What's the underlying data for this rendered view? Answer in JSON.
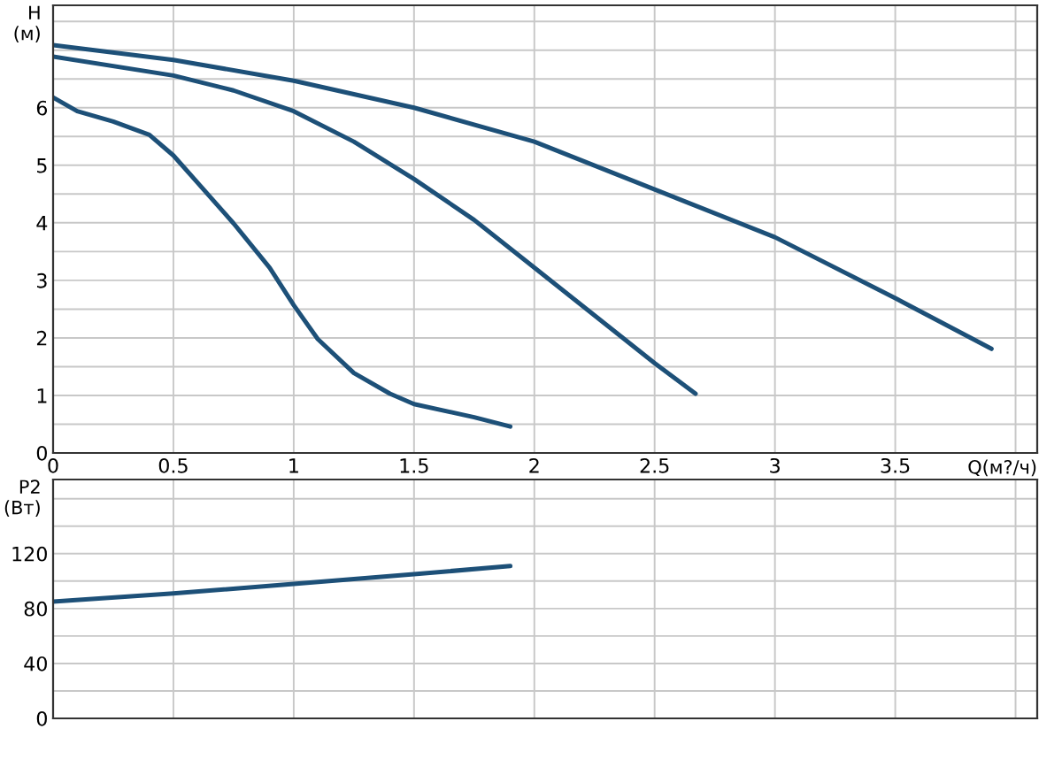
{
  "chart_data": [
    {
      "type": "line",
      "xlabel": "Q(м?/ч)",
      "ylabel": "H\n(м)",
      "xlim": [
        0,
        4.09
      ],
      "ylim": [
        0,
        7.78
      ],
      "xticks": [
        0,
        0.5,
        1,
        1.5,
        2,
        2.5,
        3,
        3.5,
        {
          "value": 4,
          "label": null
        }
      ],
      "yticks": [
        0,
        {
          "value": 0.5,
          "label": null
        },
        1,
        {
          "value": 1.5,
          "label": null
        },
        2,
        {
          "value": 2.5,
          "label": null
        },
        3,
        {
          "value": 3.5,
          "label": null
        },
        4,
        {
          "value": 4.5,
          "label": null
        },
        5,
        {
          "value": 5.5,
          "label": null
        },
        6,
        {
          "value": 6.5,
          "label": null
        },
        {
          "value": 7,
          "label": null
        },
        {
          "value": 7.5,
          "label": null
        }
      ],
      "grid": true,
      "tick_labels": "xy",
      "series": [
        {
          "color": "#1d5078",
          "x": [
            0,
            0.5,
            1,
            1.5,
            2,
            2.5,
            3,
            3.5,
            3.9
          ],
          "values": [
            7.09,
            6.83,
            6.47,
            6.0,
            5.41,
            4.58,
            3.75,
            2.69,
            1.81
          ]
        },
        {
          "color": "#1d5078",
          "x": [
            0,
            0.5,
            0.75,
            1,
            1.25,
            1.5,
            1.75,
            2,
            2.25,
            2.5,
            2.67
          ],
          "values": [
            6.89,
            6.56,
            6.3,
            5.94,
            5.41,
            4.76,
            4.05,
            3.22,
            2.39,
            1.56,
            1.03
          ]
        },
        {
          "color": "#1d5078",
          "x": [
            0,
            0.1,
            0.25,
            0.4,
            0.5,
            0.6,
            0.75,
            0.9,
            1,
            1.1,
            1.25,
            1.4,
            1.5,
            1.75,
            1.9
          ],
          "values": [
            6.18,
            5.94,
            5.76,
            5.53,
            5.17,
            4.7,
            3.99,
            3.22,
            2.57,
            1.98,
            1.39,
            1.03,
            0.85,
            0.62,
            0.46
          ]
        }
      ]
    },
    {
      "type": "line",
      "ylabel": "P2\n(Вт)",
      "xlim": [
        0,
        4.09
      ],
      "ylim": [
        0,
        174
      ],
      "xticks": [
        {
          "value": 0,
          "label": null
        },
        {
          "value": 0.5,
          "label": null
        },
        {
          "value": 1,
          "label": null
        },
        {
          "value": 1.5,
          "label": null
        },
        {
          "value": 2,
          "label": null
        },
        {
          "value": 2.5,
          "label": null
        },
        {
          "value": 3,
          "label": null
        },
        {
          "value": 3.5,
          "label": null
        },
        {
          "value": 4,
          "label": null
        }
      ],
      "yticks": [
        0,
        {
          "value": 20,
          "label": null
        },
        40,
        {
          "value": 60,
          "label": null
        },
        80,
        {
          "value": 100,
          "label": null
        },
        120,
        {
          "value": 140,
          "label": null
        },
        {
          "value": 160,
          "label": null
        }
      ],
      "grid": true,
      "tick_labels": "y",
      "series": [
        {
          "color": "#1d5078",
          "x": [
            0,
            0.5,
            1,
            1.5,
            1.9
          ],
          "values": [
            85,
            91,
            98,
            105,
            111
          ]
        }
      ]
    }
  ]
}
